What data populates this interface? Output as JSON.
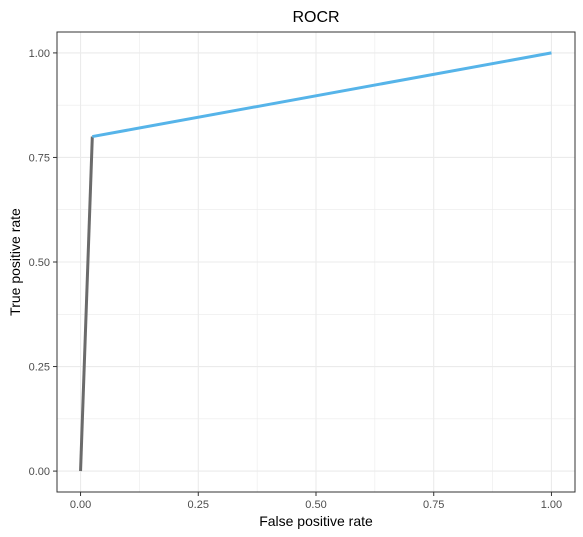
{
  "chart_data": {
    "type": "line",
    "title": "ROCR",
    "xlabel": "False positive rate",
    "ylabel": "True positive rate",
    "xlim": [
      0,
      1
    ],
    "ylim": [
      0,
      1
    ],
    "x_ticks": [
      0,
      0.25,
      0.5,
      0.75,
      1
    ],
    "y_ticks": [
      0,
      0.25,
      0.5,
      0.75,
      1
    ],
    "x_tick_labels": [
      "0.00",
      "0.25",
      "0.50",
      "0.75",
      "1.00"
    ],
    "y_tick_labels": [
      "0.00",
      "0.25",
      "0.50",
      "0.75",
      "1.00"
    ],
    "grid": true,
    "legend": "none",
    "series": [
      {
        "color": "#6b6b6b",
        "x": [
          0,
          0.025
        ],
        "y": [
          0,
          0.8
        ]
      },
      {
        "color": "#56b4e9",
        "x": [
          0.025,
          1
        ],
        "y": [
          0.8,
          1
        ]
      }
    ],
    "grid_color": "#ebebeb",
    "border_color": "#333333"
  }
}
